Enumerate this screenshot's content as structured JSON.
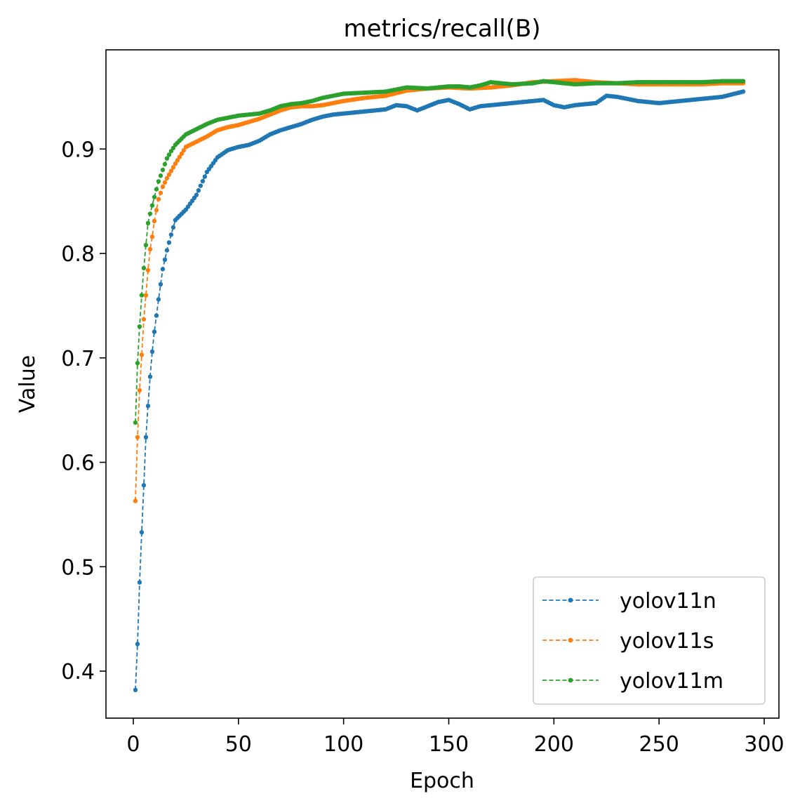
{
  "chart_data": {
    "type": "line",
    "title": "metrics/recall(B)",
    "xlabel": "Epoch",
    "ylabel": "Value",
    "xlim": [
      -13,
      307
    ],
    "ylim": [
      0.355,
      0.995
    ],
    "xticks": [
      0,
      50,
      100,
      150,
      200,
      250,
      300
    ],
    "yticks": [
      0.4,
      0.5,
      0.6,
      0.7,
      0.8,
      0.9
    ],
    "xtick_labels": [
      "0",
      "50",
      "100",
      "150",
      "200",
      "250",
      "300"
    ],
    "ytick_labels": [
      "0.4",
      "0.5",
      "0.6",
      "0.7",
      "0.8",
      "0.9"
    ],
    "legend_position": "lower-right",
    "grid": false,
    "series": [
      {
        "name": "yolov11n",
        "color": "#1f77b4",
        "linestyle": "dashed",
        "marker": "dot",
        "points": [
          [
            1,
            0.382
          ],
          [
            2,
            0.426
          ],
          [
            3,
            0.485
          ],
          [
            4,
            0.533
          ],
          [
            5,
            0.578
          ],
          [
            6,
            0.624
          ],
          [
            7,
            0.654
          ],
          [
            8,
            0.682
          ],
          [
            9,
            0.706
          ],
          [
            10,
            0.725
          ],
          [
            12,
            0.756
          ],
          [
            14,
            0.785
          ],
          [
            16,
            0.803
          ],
          [
            18,
            0.818
          ],
          [
            20,
            0.832
          ],
          [
            25,
            0.842
          ],
          [
            30,
            0.856
          ],
          [
            35,
            0.878
          ],
          [
            40,
            0.892
          ],
          [
            45,
            0.899
          ],
          [
            50,
            0.902
          ],
          [
            55,
            0.904
          ],
          [
            60,
            0.908
          ],
          [
            65,
            0.914
          ],
          [
            70,
            0.918
          ],
          [
            75,
            0.921
          ],
          [
            80,
            0.924
          ],
          [
            85,
            0.928
          ],
          [
            90,
            0.931
          ],
          [
            95,
            0.933
          ],
          [
            100,
            0.934
          ],
          [
            110,
            0.936
          ],
          [
            120,
            0.938
          ],
          [
            125,
            0.942
          ],
          [
            130,
            0.941
          ],
          [
            135,
            0.937
          ],
          [
            140,
            0.941
          ],
          [
            145,
            0.945
          ],
          [
            150,
            0.947
          ],
          [
            155,
            0.943
          ],
          [
            160,
            0.938
          ],
          [
            165,
            0.941
          ],
          [
            170,
            0.942
          ],
          [
            180,
            0.944
          ],
          [
            190,
            0.946
          ],
          [
            195,
            0.947
          ],
          [
            200,
            0.942
          ],
          [
            205,
            0.94
          ],
          [
            210,
            0.942
          ],
          [
            220,
            0.944
          ],
          [
            225,
            0.951
          ],
          [
            230,
            0.95
          ],
          [
            240,
            0.946
          ],
          [
            250,
            0.944
          ],
          [
            260,
            0.946
          ],
          [
            270,
            0.948
          ],
          [
            280,
            0.95
          ],
          [
            290,
            0.955
          ]
        ]
      },
      {
        "name": "yolov11s",
        "color": "#ff7f0e",
        "linestyle": "dashed",
        "marker": "dot",
        "points": [
          [
            1,
            0.563
          ],
          [
            2,
            0.624
          ],
          [
            3,
            0.669
          ],
          [
            4,
            0.703
          ],
          [
            5,
            0.737
          ],
          [
            6,
            0.76
          ],
          [
            7,
            0.784
          ],
          [
            8,
            0.804
          ],
          [
            9,
            0.816
          ],
          [
            10,
            0.831
          ],
          [
            12,
            0.852
          ],
          [
            14,
            0.864
          ],
          [
            16,
            0.872
          ],
          [
            18,
            0.879
          ],
          [
            20,
            0.886
          ],
          [
            25,
            0.902
          ],
          [
            30,
            0.907
          ],
          [
            35,
            0.912
          ],
          [
            40,
            0.918
          ],
          [
            45,
            0.921
          ],
          [
            50,
            0.923
          ],
          [
            55,
            0.926
          ],
          [
            60,
            0.929
          ],
          [
            65,
            0.933
          ],
          [
            70,
            0.937
          ],
          [
            75,
            0.94
          ],
          [
            80,
            0.941
          ],
          [
            85,
            0.941
          ],
          [
            90,
            0.942
          ],
          [
            95,
            0.944
          ],
          [
            100,
            0.946
          ],
          [
            110,
            0.949
          ],
          [
            120,
            0.951
          ],
          [
            130,
            0.956
          ],
          [
            140,
            0.958
          ],
          [
            150,
            0.959
          ],
          [
            160,
            0.958
          ],
          [
            170,
            0.959
          ],
          [
            180,
            0.961
          ],
          [
            190,
            0.964
          ],
          [
            200,
            0.965
          ],
          [
            210,
            0.966
          ],
          [
            220,
            0.964
          ],
          [
            230,
            0.963
          ],
          [
            240,
            0.962
          ],
          [
            250,
            0.962
          ],
          [
            260,
            0.962
          ],
          [
            270,
            0.962
          ],
          [
            280,
            0.963
          ],
          [
            290,
            0.963
          ]
        ]
      },
      {
        "name": "yolov11m",
        "color": "#2ca02c",
        "linestyle": "dashed",
        "marker": "dot",
        "points": [
          [
            1,
            0.638
          ],
          [
            2,
            0.695
          ],
          [
            3,
            0.73
          ],
          [
            4,
            0.76
          ],
          [
            5,
            0.786
          ],
          [
            6,
            0.808
          ],
          [
            7,
            0.829
          ],
          [
            8,
            0.838
          ],
          [
            9,
            0.846
          ],
          [
            10,
            0.854
          ],
          [
            12,
            0.869
          ],
          [
            14,
            0.88
          ],
          [
            16,
            0.891
          ],
          [
            18,
            0.898
          ],
          [
            20,
            0.904
          ],
          [
            25,
            0.914
          ],
          [
            30,
            0.919
          ],
          [
            35,
            0.924
          ],
          [
            40,
            0.928
          ],
          [
            45,
            0.93
          ],
          [
            50,
            0.932
          ],
          [
            55,
            0.933
          ],
          [
            60,
            0.934
          ],
          [
            65,
            0.937
          ],
          [
            70,
            0.941
          ],
          [
            75,
            0.943
          ],
          [
            80,
            0.944
          ],
          [
            85,
            0.946
          ],
          [
            90,
            0.949
          ],
          [
            95,
            0.951
          ],
          [
            100,
            0.953
          ],
          [
            110,
            0.954
          ],
          [
            120,
            0.955
          ],
          [
            125,
            0.957
          ],
          [
            130,
            0.959
          ],
          [
            140,
            0.958
          ],
          [
            150,
            0.96
          ],
          [
            155,
            0.96
          ],
          [
            160,
            0.959
          ],
          [
            165,
            0.961
          ],
          [
            170,
            0.964
          ],
          [
            180,
            0.962
          ],
          [
            190,
            0.963
          ],
          [
            195,
            0.965
          ],
          [
            200,
            0.964
          ],
          [
            210,
            0.962
          ],
          [
            220,
            0.963
          ],
          [
            230,
            0.963
          ],
          [
            240,
            0.964
          ],
          [
            250,
            0.964
          ],
          [
            260,
            0.964
          ],
          [
            270,
            0.964
          ],
          [
            280,
            0.965
          ],
          [
            290,
            0.965
          ]
        ]
      }
    ]
  }
}
